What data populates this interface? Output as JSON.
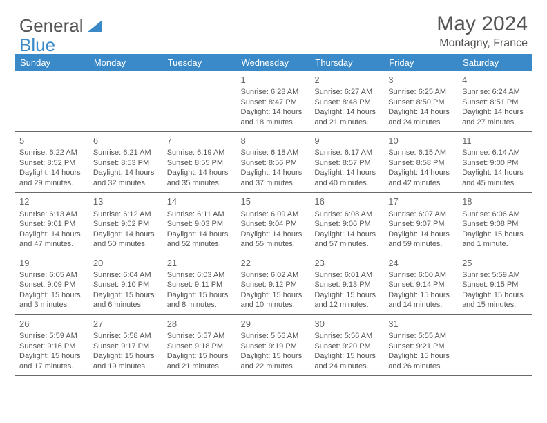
{
  "brand": {
    "part1": "General",
    "part2": "Blue"
  },
  "header": {
    "title": "May 2024",
    "location": "Montagny, France"
  },
  "colors": {
    "header_bg": "#3a8ac9",
    "header_fg": "#ffffff",
    "text": "#555555",
    "border": "#6a6a6a"
  },
  "weekdays": [
    "Sunday",
    "Monday",
    "Tuesday",
    "Wednesday",
    "Thursday",
    "Friday",
    "Saturday"
  ],
  "weeks": [
    [
      null,
      null,
      null,
      {
        "d": "1",
        "sr": "6:28 AM",
        "ss": "8:47 PM",
        "dl": "14 hours and 18 minutes."
      },
      {
        "d": "2",
        "sr": "6:27 AM",
        "ss": "8:48 PM",
        "dl": "14 hours and 21 minutes."
      },
      {
        "d": "3",
        "sr": "6:25 AM",
        "ss": "8:50 PM",
        "dl": "14 hours and 24 minutes."
      },
      {
        "d": "4",
        "sr": "6:24 AM",
        "ss": "8:51 PM",
        "dl": "14 hours and 27 minutes."
      }
    ],
    [
      {
        "d": "5",
        "sr": "6:22 AM",
        "ss": "8:52 PM",
        "dl": "14 hours and 29 minutes."
      },
      {
        "d": "6",
        "sr": "6:21 AM",
        "ss": "8:53 PM",
        "dl": "14 hours and 32 minutes."
      },
      {
        "d": "7",
        "sr": "6:19 AM",
        "ss": "8:55 PM",
        "dl": "14 hours and 35 minutes."
      },
      {
        "d": "8",
        "sr": "6:18 AM",
        "ss": "8:56 PM",
        "dl": "14 hours and 37 minutes."
      },
      {
        "d": "9",
        "sr": "6:17 AM",
        "ss": "8:57 PM",
        "dl": "14 hours and 40 minutes."
      },
      {
        "d": "10",
        "sr": "6:15 AM",
        "ss": "8:58 PM",
        "dl": "14 hours and 42 minutes."
      },
      {
        "d": "11",
        "sr": "6:14 AM",
        "ss": "9:00 PM",
        "dl": "14 hours and 45 minutes."
      }
    ],
    [
      {
        "d": "12",
        "sr": "6:13 AM",
        "ss": "9:01 PM",
        "dl": "14 hours and 47 minutes."
      },
      {
        "d": "13",
        "sr": "6:12 AM",
        "ss": "9:02 PM",
        "dl": "14 hours and 50 minutes."
      },
      {
        "d": "14",
        "sr": "6:11 AM",
        "ss": "9:03 PM",
        "dl": "14 hours and 52 minutes."
      },
      {
        "d": "15",
        "sr": "6:09 AM",
        "ss": "9:04 PM",
        "dl": "14 hours and 55 minutes."
      },
      {
        "d": "16",
        "sr": "6:08 AM",
        "ss": "9:06 PM",
        "dl": "14 hours and 57 minutes."
      },
      {
        "d": "17",
        "sr": "6:07 AM",
        "ss": "9:07 PM",
        "dl": "14 hours and 59 minutes."
      },
      {
        "d": "18",
        "sr": "6:06 AM",
        "ss": "9:08 PM",
        "dl": "15 hours and 1 minute."
      }
    ],
    [
      {
        "d": "19",
        "sr": "6:05 AM",
        "ss": "9:09 PM",
        "dl": "15 hours and 3 minutes."
      },
      {
        "d": "20",
        "sr": "6:04 AM",
        "ss": "9:10 PM",
        "dl": "15 hours and 6 minutes."
      },
      {
        "d": "21",
        "sr": "6:03 AM",
        "ss": "9:11 PM",
        "dl": "15 hours and 8 minutes."
      },
      {
        "d": "22",
        "sr": "6:02 AM",
        "ss": "9:12 PM",
        "dl": "15 hours and 10 minutes."
      },
      {
        "d": "23",
        "sr": "6:01 AM",
        "ss": "9:13 PM",
        "dl": "15 hours and 12 minutes."
      },
      {
        "d": "24",
        "sr": "6:00 AM",
        "ss": "9:14 PM",
        "dl": "15 hours and 14 minutes."
      },
      {
        "d": "25",
        "sr": "5:59 AM",
        "ss": "9:15 PM",
        "dl": "15 hours and 15 minutes."
      }
    ],
    [
      {
        "d": "26",
        "sr": "5:59 AM",
        "ss": "9:16 PM",
        "dl": "15 hours and 17 minutes."
      },
      {
        "d": "27",
        "sr": "5:58 AM",
        "ss": "9:17 PM",
        "dl": "15 hours and 19 minutes."
      },
      {
        "d": "28",
        "sr": "5:57 AM",
        "ss": "9:18 PM",
        "dl": "15 hours and 21 minutes."
      },
      {
        "d": "29",
        "sr": "5:56 AM",
        "ss": "9:19 PM",
        "dl": "15 hours and 22 minutes."
      },
      {
        "d": "30",
        "sr": "5:56 AM",
        "ss": "9:20 PM",
        "dl": "15 hours and 24 minutes."
      },
      {
        "d": "31",
        "sr": "5:55 AM",
        "ss": "9:21 PM",
        "dl": "15 hours and 26 minutes."
      },
      null
    ]
  ],
  "labels": {
    "sunrise": "Sunrise: ",
    "sunset": "Sunset: ",
    "daylight": "Daylight: "
  }
}
